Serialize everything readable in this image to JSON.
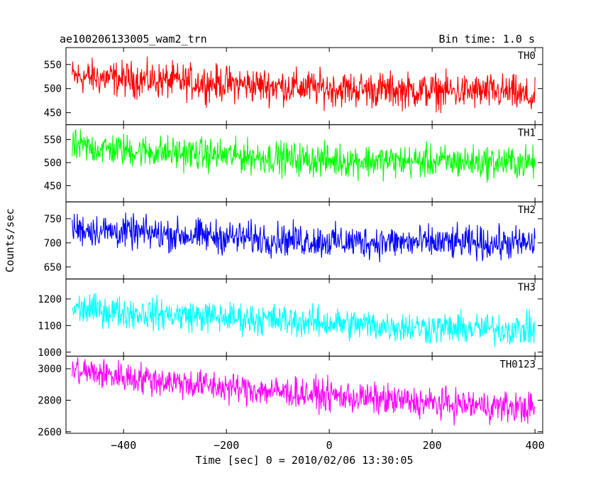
{
  "header": {
    "title": "ae100206133005_wam2_trn",
    "bin_time": "Bin time: 1.0 s"
  },
  "chart_data": {
    "type": "line",
    "title": "ae100206133005_wam2_trn",
    "subtitle": "Bin time: 1.0 s",
    "xlabel": "Time [sec] 0 = 2010/02/06 13:30:05",
    "ylabel": "Counts/sec",
    "xlim": [
      -512,
      415
    ],
    "x_range_data": [
      -500,
      400
    ],
    "x_ticks": [
      -400,
      -200,
      0,
      200,
      400
    ],
    "x_tick_labels": [
      "−400",
      "−200",
      "0",
      "200",
      "400"
    ],
    "grid": false,
    "panels": [
      {
        "name": "TH0",
        "color": "#ff0000",
        "ylim": [
          425,
          585
        ],
        "y_ticks": [
          450,
          500,
          550
        ],
        "trend": [
          [
            -500,
            525
          ],
          [
            -400,
            520
          ],
          [
            -200,
            510
          ],
          [
            0,
            500
          ],
          [
            200,
            495
          ],
          [
            350,
            492
          ],
          [
            400,
            478
          ]
        ],
        "noise": 28
      },
      {
        "name": "TH1",
        "color": "#00ff00",
        "ylim": [
          415,
          582
        ],
        "y_ticks": [
          450,
          500,
          550
        ],
        "trend": [
          [
            -500,
            535
          ],
          [
            -400,
            527
          ],
          [
            -200,
            515
          ],
          [
            0,
            505
          ],
          [
            200,
            502
          ],
          [
            400,
            500
          ]
        ],
        "noise": 27
      },
      {
        "name": "TH2",
        "color": "#0000ff",
        "ylim": [
          625,
          785
        ],
        "y_ticks": [
          650,
          700,
          750
        ],
        "trend": [
          [
            -500,
            730
          ],
          [
            -400,
            722
          ],
          [
            -200,
            712
          ],
          [
            0,
            703
          ],
          [
            200,
            700
          ],
          [
            400,
            698
          ]
        ],
        "noise": 26
      },
      {
        "name": "TH3",
        "color": "#00ffff",
        "ylim": [
          985,
          1275
        ],
        "y_ticks": [
          1000,
          1100,
          1200
        ],
        "trend": [
          [
            -500,
            1165
          ],
          [
            -400,
            1150
          ],
          [
            -200,
            1130
          ],
          [
            0,
            1110
          ],
          [
            200,
            1090
          ],
          [
            400,
            1085
          ]
        ],
        "noise": 45
      },
      {
        "name": "TH0123",
        "color": "#ff00ff",
        "ylim": [
          2590,
          3080
        ],
        "y_ticks": [
          2600,
          2800,
          3000
        ],
        "trend": [
          [
            -500,
            2990
          ],
          [
            -400,
            2950
          ],
          [
            -200,
            2880
          ],
          [
            0,
            2830
          ],
          [
            200,
            2780
          ],
          [
            400,
            2750
          ]
        ],
        "noise": 75
      }
    ]
  }
}
